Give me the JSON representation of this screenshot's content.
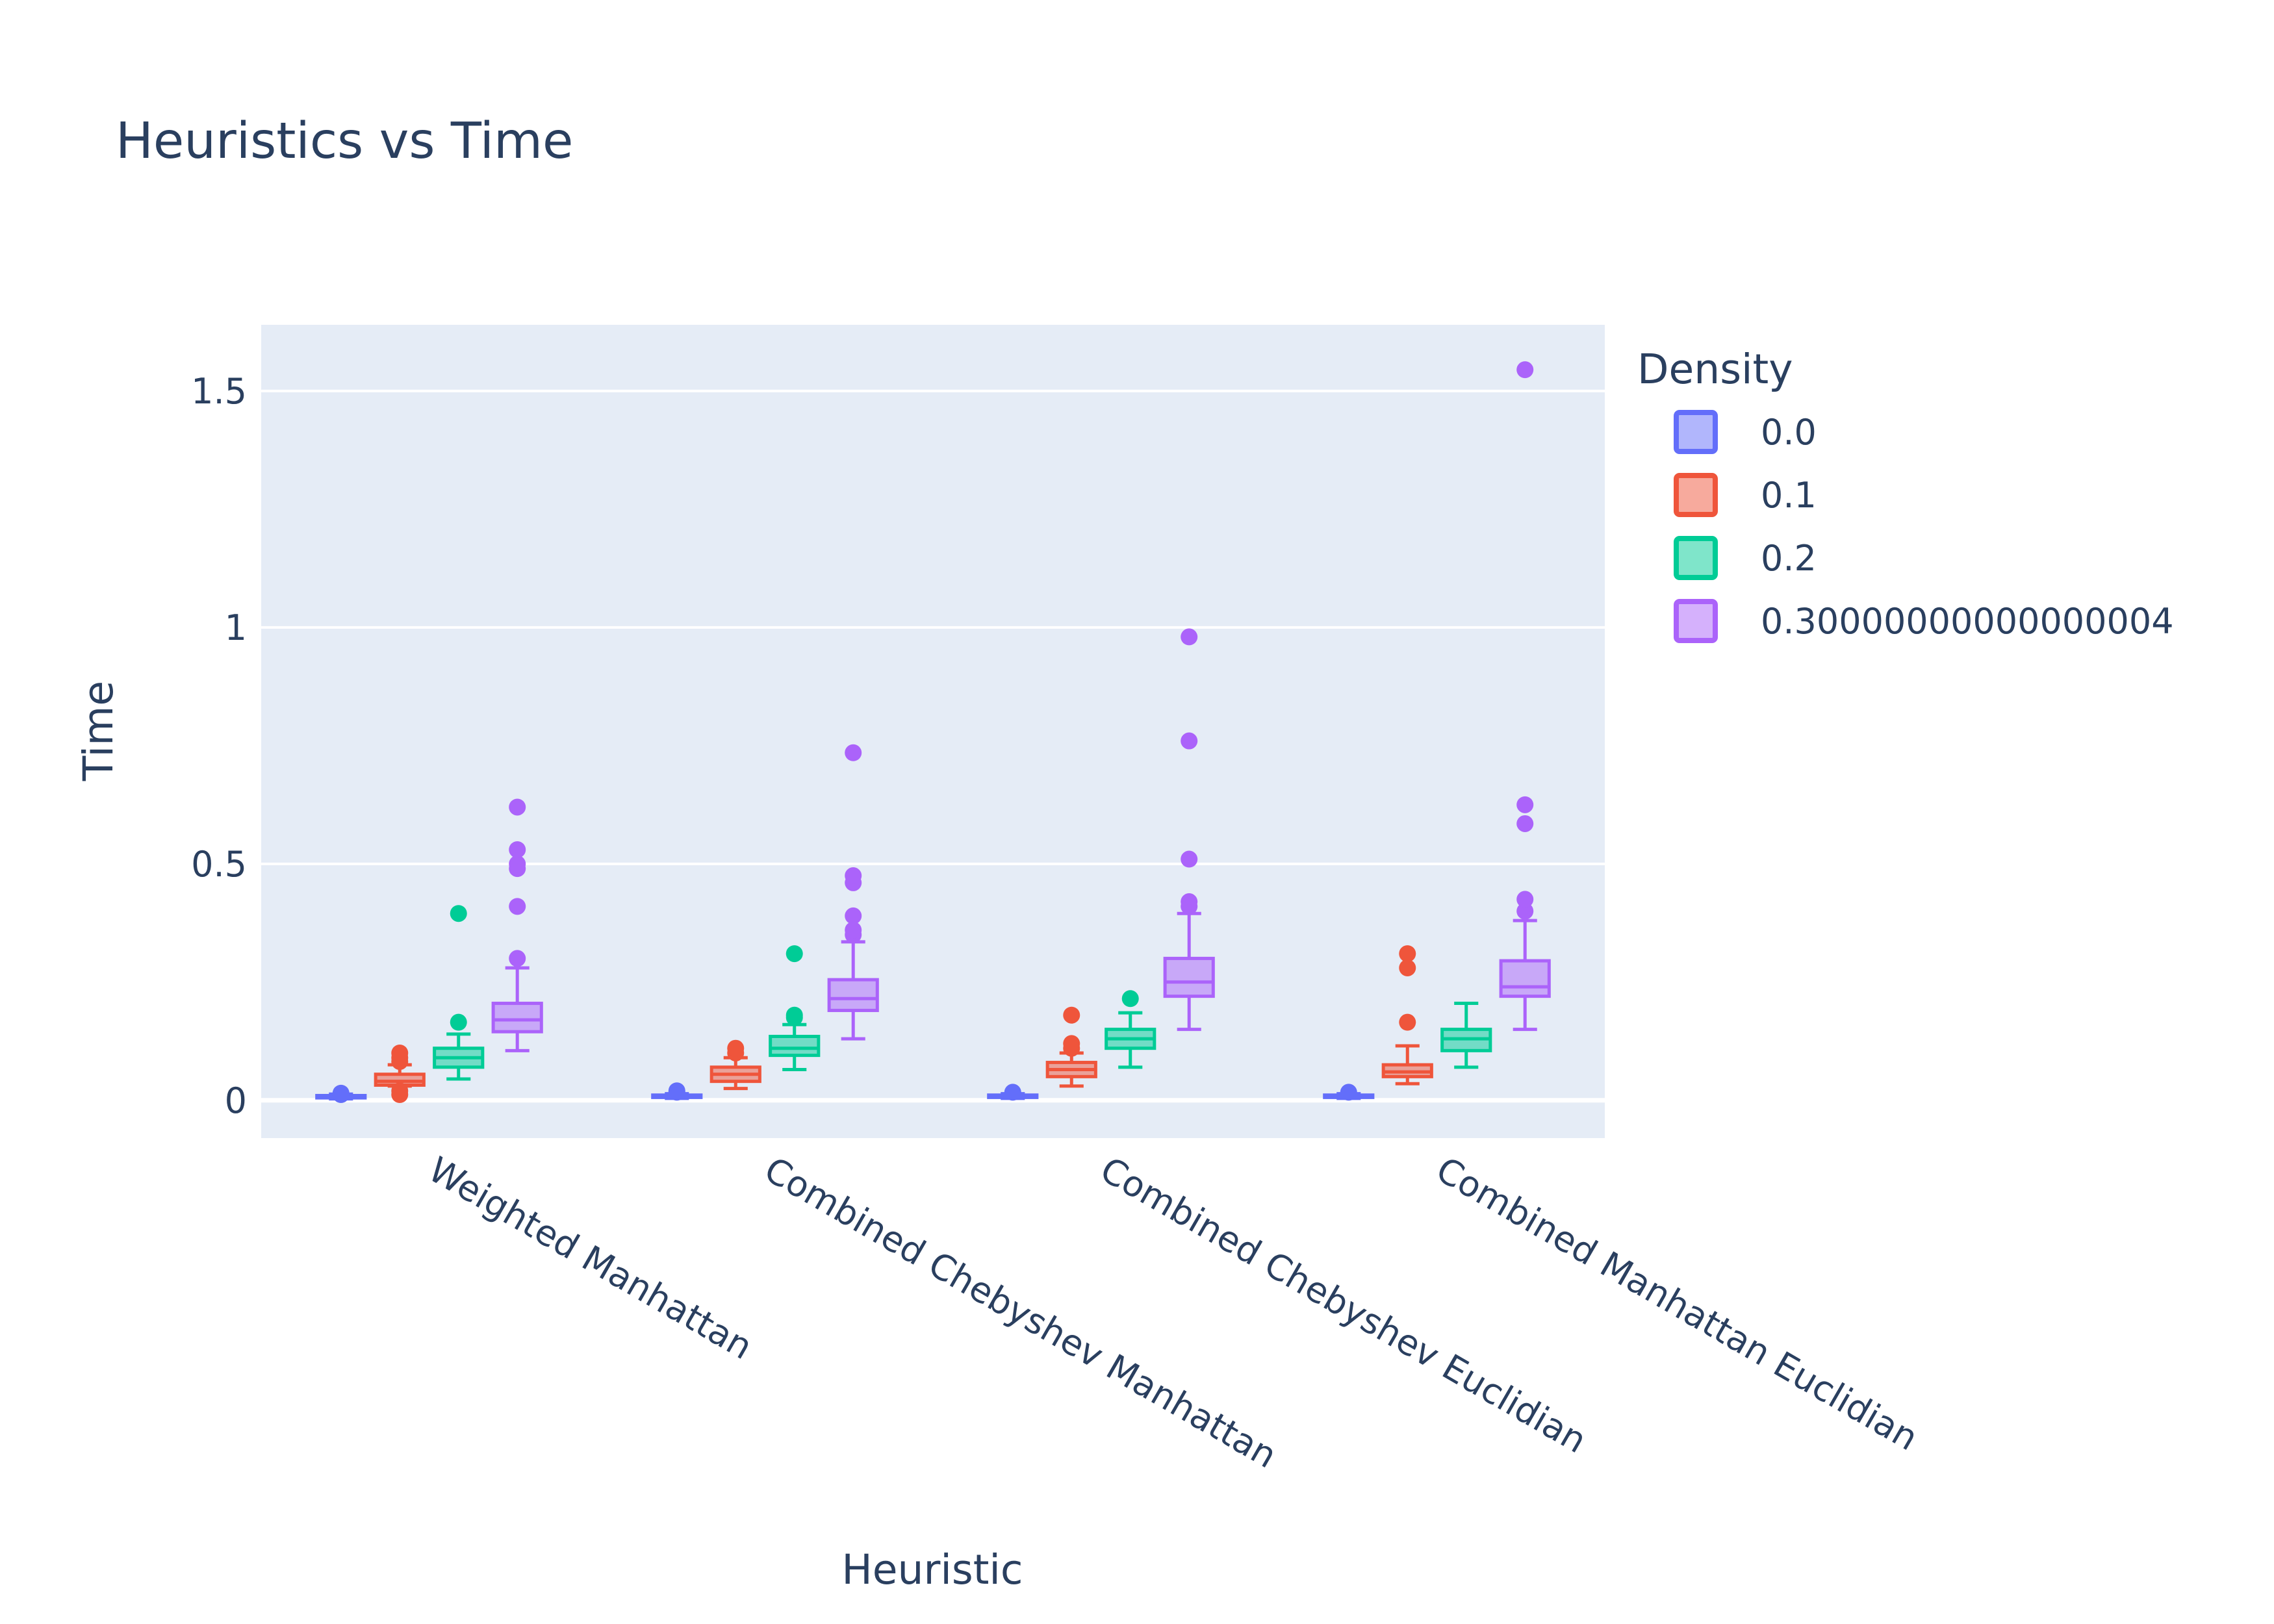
{
  "chart_data": {
    "type": "box",
    "title": "Heuristics vs Time",
    "xlabel": "Heuristic",
    "ylabel": "Time",
    "ylim": [
      -0.08,
      1.64
    ],
    "yticks": [
      0,
      0.5,
      1,
      1.5
    ],
    "ytick_labels": [
      "0",
      "0.5",
      "1",
      "1.5"
    ],
    "grid": true,
    "categories": [
      "Weighted Manhattan",
      "Combined Chebyshev Manhattan",
      "Combined Chebyshev Euclidian",
      "Combined Manhattan Euclidian"
    ],
    "legend": {
      "title": "Density",
      "placement": "top-right"
    },
    "series": [
      {
        "name": "0.0",
        "color": "#636efa",
        "fill": "rgba(99,110,250,0.5)",
        "boxes": [
          {
            "min": 0.003,
            "q1": 0.005,
            "median": 0.007,
            "q3": 0.01,
            "max": 0.013,
            "outliers": [
              0.012,
              0.015
            ]
          },
          {
            "min": 0.004,
            "q1": 0.006,
            "median": 0.008,
            "q3": 0.011,
            "max": 0.014,
            "outliers": [
              0.017,
              0.02
            ]
          },
          {
            "min": 0.004,
            "q1": 0.006,
            "median": 0.008,
            "q3": 0.011,
            "max": 0.014,
            "outliers": [
              0.017
            ]
          },
          {
            "min": 0.004,
            "q1": 0.006,
            "median": 0.008,
            "q3": 0.011,
            "max": 0.014,
            "outliers": [
              0.017
            ]
          }
        ]
      },
      {
        "name": "0.1",
        "color": "#ef553b",
        "fill": "rgba(239,85,59,0.5)",
        "boxes": [
          {
            "min": 0.03,
            "q1": 0.032,
            "median": 0.04,
            "q3": 0.055,
            "max": 0.075,
            "outliers": [
              0.012,
              0.02,
              0.082,
              0.09,
              0.1
            ]
          },
          {
            "min": 0.025,
            "q1": 0.04,
            "median": 0.055,
            "q3": 0.07,
            "max": 0.09,
            "outliers": [
              0.1,
              0.11
            ]
          },
          {
            "min": 0.03,
            "q1": 0.05,
            "median": 0.065,
            "q3": 0.08,
            "max": 0.1,
            "outliers": [
              0.11,
              0.12,
              0.18
            ]
          },
          {
            "min": 0.035,
            "q1": 0.05,
            "median": 0.06,
            "q3": 0.075,
            "max": 0.115,
            "outliers": [
              0.165,
              0.28,
              0.31
            ]
          }
        ]
      },
      {
        "name": "0.2",
        "color": "#00cc96",
        "fill": "rgba(0,204,150,0.5)",
        "boxes": [
          {
            "min": 0.045,
            "q1": 0.07,
            "median": 0.09,
            "q3": 0.11,
            "max": 0.14,
            "outliers": [
              0.165,
              0.395
            ]
          },
          {
            "min": 0.065,
            "q1": 0.095,
            "median": 0.11,
            "q3": 0.135,
            "max": 0.16,
            "outliers": [
              0.175,
              0.18,
              0.31
            ]
          },
          {
            "min": 0.07,
            "q1": 0.11,
            "median": 0.13,
            "q3": 0.15,
            "max": 0.185,
            "outliers": [
              0.215
            ]
          },
          {
            "min": 0.07,
            "q1": 0.105,
            "median": 0.13,
            "q3": 0.15,
            "max": 0.205,
            "outliers": []
          }
        ]
      },
      {
        "name": "0.30000000000000004",
        "color": "#ab63fa",
        "fill": "rgba(171,99,250,0.5)",
        "boxes": [
          {
            "min": 0.105,
            "q1": 0.145,
            "median": 0.17,
            "q3": 0.205,
            "max": 0.28,
            "outliers": [
              0.3,
              0.41,
              0.49,
              0.5,
              0.53,
              0.62
            ]
          },
          {
            "min": 0.13,
            "q1": 0.19,
            "median": 0.215,
            "q3": 0.255,
            "max": 0.335,
            "outliers": [
              0.35,
              0.36,
              0.39,
              0.46,
              0.475,
              0.735
            ]
          },
          {
            "min": 0.15,
            "q1": 0.22,
            "median": 0.25,
            "q3": 0.3,
            "max": 0.395,
            "outliers": [
              0.41,
              0.42,
              0.51,
              0.76,
              0.98
            ]
          },
          {
            "min": 0.15,
            "q1": 0.22,
            "median": 0.24,
            "q3": 0.295,
            "max": 0.38,
            "outliers": [
              0.4,
              0.425,
              0.585,
              0.625,
              1.545
            ]
          }
        ]
      }
    ]
  }
}
